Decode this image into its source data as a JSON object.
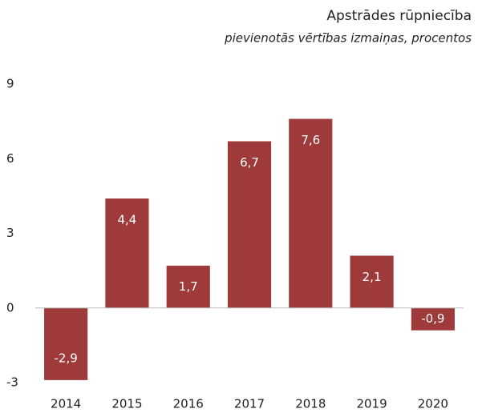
{
  "chart_data": {
    "type": "bar",
    "title": "Apstrādes rūpniecība",
    "subtitle": "pievienotās vērtības izmaiņas, procentos",
    "categories": [
      "2014",
      "2015",
      "2016",
      "2017",
      "2018",
      "2019",
      "2020"
    ],
    "values": [
      -2.9,
      4.4,
      1.7,
      6.7,
      7.6,
      2.1,
      -0.9
    ],
    "value_labels": [
      "-2,9",
      "4,4",
      "1,7",
      "6,7",
      "7,6",
      "2,1",
      "-0,9"
    ],
    "color": "#9e3a3a",
    "ylim": [
      -3,
      9
    ],
    "yticks": [
      -3,
      0,
      3,
      6,
      9
    ],
    "grid": false
  }
}
